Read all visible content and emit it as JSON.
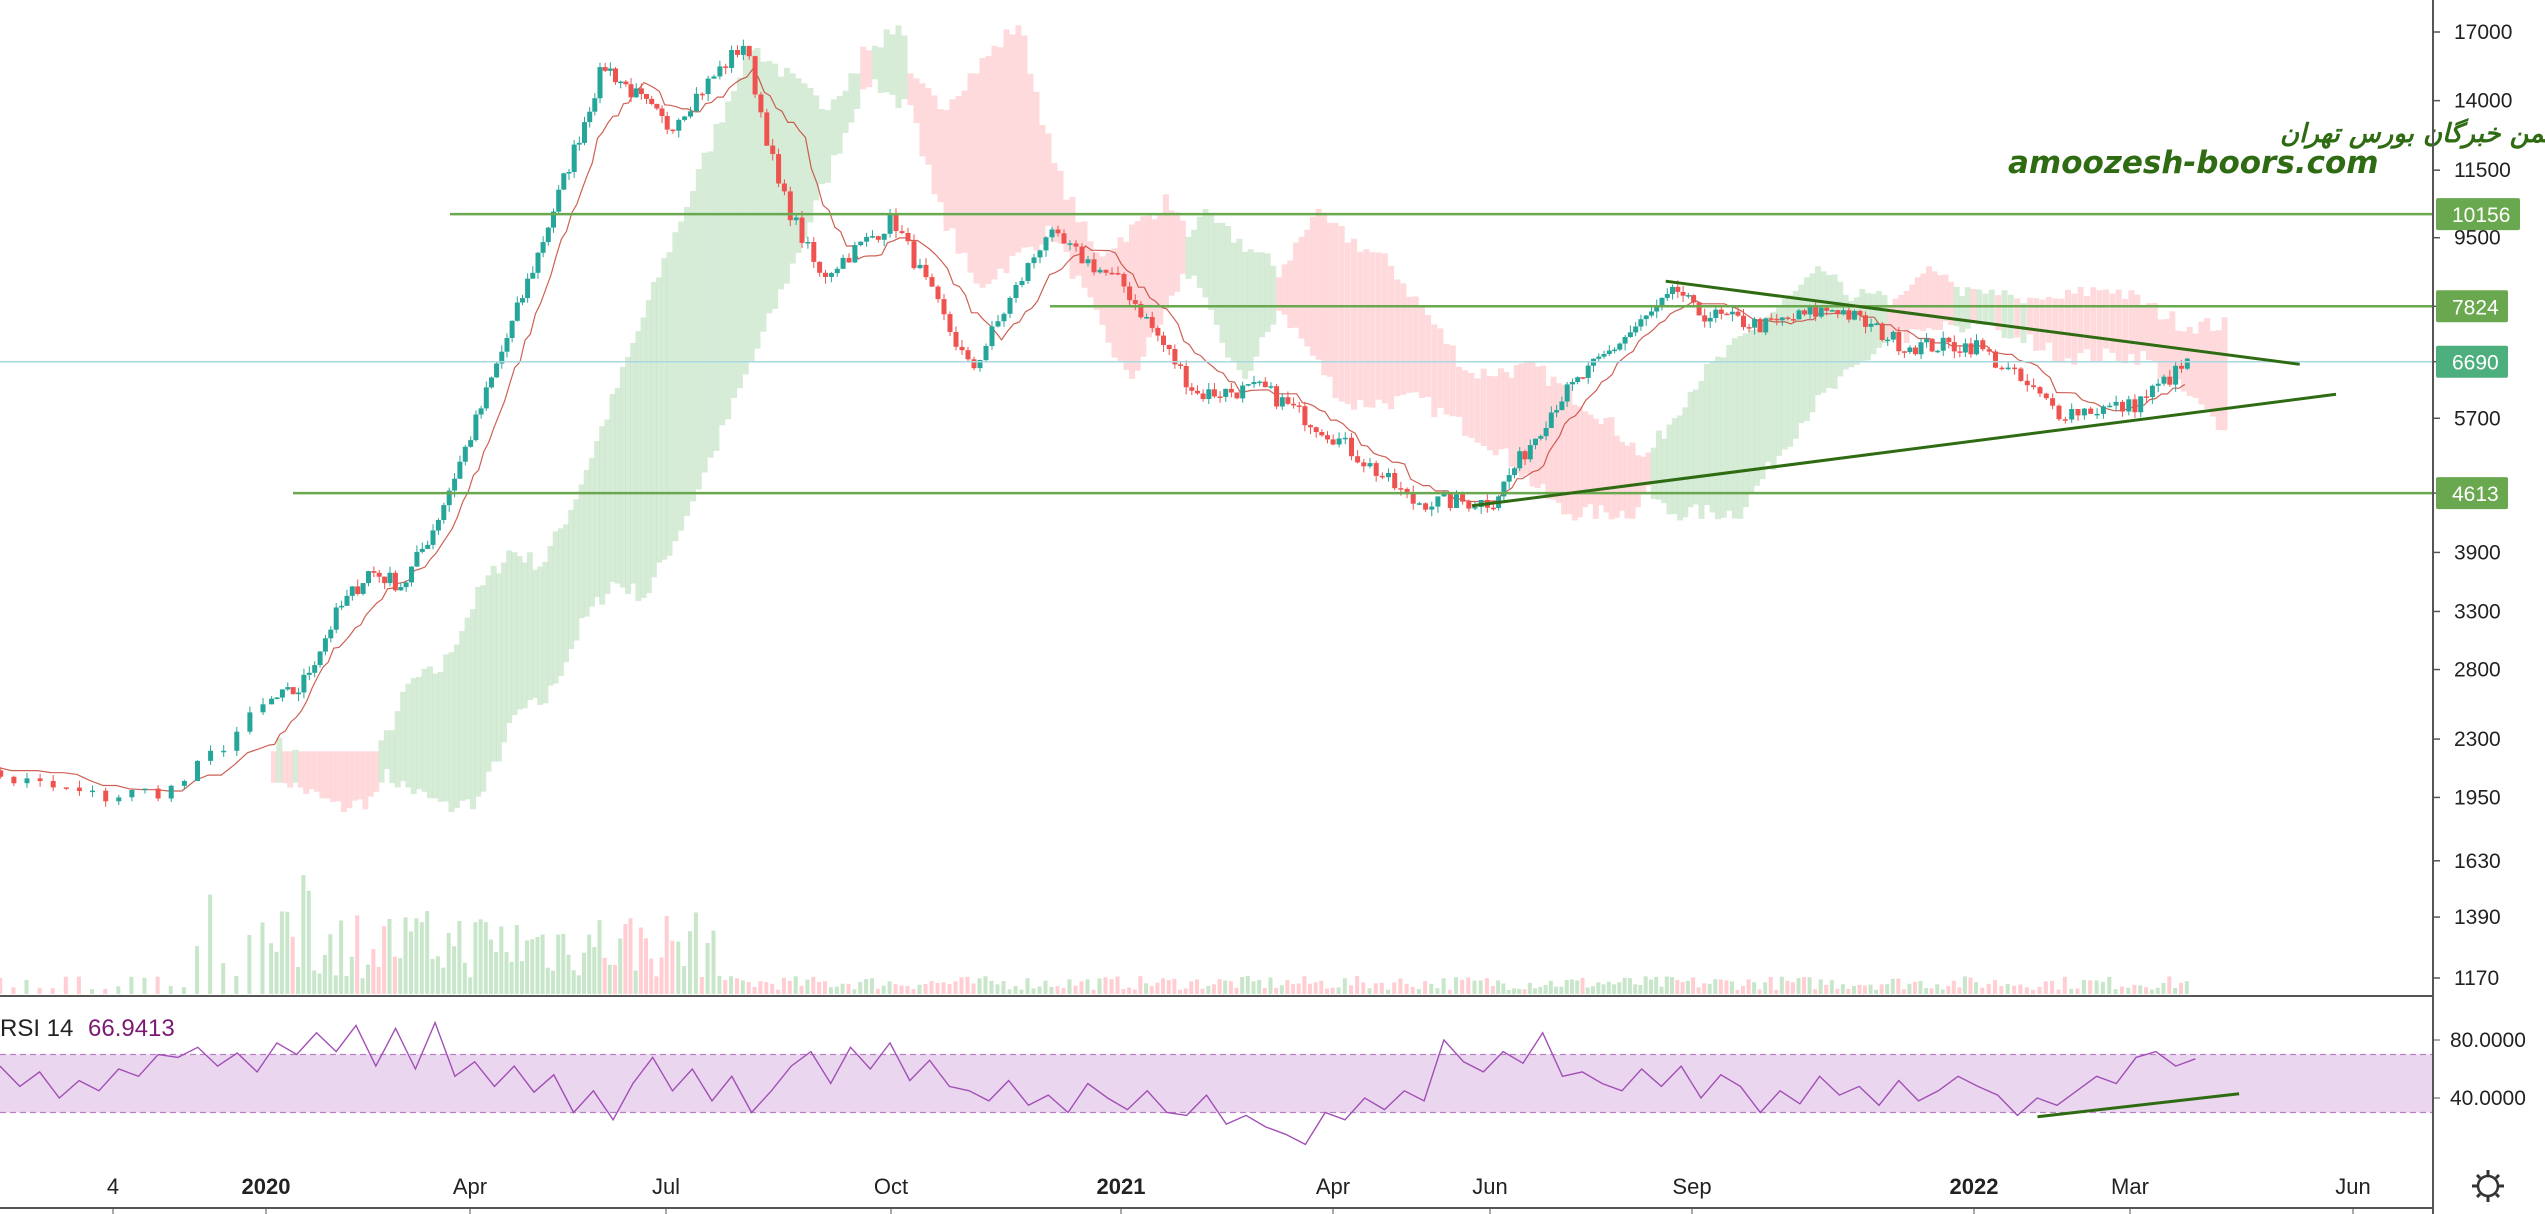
{
  "watermark": {
    "line1": "انجمن خبرگان  بورس تهران",
    "line2": "amoozesh-boors.com"
  },
  "colors": {
    "up": "#26a69a",
    "down": "#ef5350",
    "level_line": "#6aa84f",
    "trend_line": "#2e6b12",
    "kumo_bull": "#c8e6c9",
    "kumo_bear": "#ffcdd2",
    "base_line": "#c0392b",
    "rsi_line": "#a24fb5",
    "rsi_band": "#ead7ef"
  },
  "chart_data": [
    {
      "type": "candlestick",
      "name": "price",
      "y_scale": "log",
      "y_ticks": [
        17000,
        14000,
        11500,
        9500,
        7824,
        6690,
        5700,
        4613,
        3900,
        3300,
        2800,
        2300,
        1950,
        1630,
        1390,
        1170
      ],
      "y_tick_labels": [
        "17000",
        "14000",
        "11500",
        "9500",
        "",
        "",
        "5700",
        "",
        "3900",
        "3300",
        "2800",
        "2300",
        "1950",
        "1630",
        "1390",
        "1170"
      ],
      "x_tick_labels": [
        "4",
        "2020",
        "Apr",
        "Jul",
        "Oct",
        "2021",
        "Apr",
        "Jun",
        "Sep",
        "2022",
        "Mar",
        "Jun"
      ],
      "bold_x_ticks": [
        "2020",
        "2021",
        "2022"
      ],
      "horizontal_levels": [
        10156,
        7824,
        4613
      ],
      "current_price": 6690,
      "price_path": [
        {
          "x": "2019-11",
          "y": 2150
        },
        {
          "x": "2019-11-15",
          "y": 2050
        },
        {
          "x": "2019-12",
          "y": 1950
        },
        {
          "x": "2019-12-15",
          "y": 2000
        },
        {
          "x": "2020-01",
          "y": 2550
        },
        {
          "x": "2020-01-15",
          "y": 2650
        },
        {
          "x": "2020-02",
          "y": 3300
        },
        {
          "x": "2020-02-15",
          "y": 3700
        },
        {
          "x": "2020-03",
          "y": 3550
        },
        {
          "x": "2020-03-15",
          "y": 4200
        },
        {
          "x": "2020-04",
          "y": 5500
        },
        {
          "x": "2020-05",
          "y": 9000
        },
        {
          "x": "2020-06",
          "y": 15500
        },
        {
          "x": "2020-07",
          "y": 13000
        },
        {
          "x": "2020-08",
          "y": 16500
        },
        {
          "x": "2020-08-15",
          "y": 11000
        },
        {
          "x": "2020-09",
          "y": 8500
        },
        {
          "x": "2020-10",
          "y": 10000
        },
        {
          "x": "2020-11",
          "y": 6500
        },
        {
          "x": "2020-12",
          "y": 9600
        },
        {
          "x": "2021-01",
          "y": 8300
        },
        {
          "x": "2021-02",
          "y": 6100
        },
        {
          "x": "2021-03",
          "y": 6200
        },
        {
          "x": "2021-04",
          "y": 5400
        },
        {
          "x": "2021-05",
          "y": 4500
        },
        {
          "x": "2021-06",
          "y": 4500
        },
        {
          "x": "2021-07",
          "y": 6000
        },
        {
          "x": "2021-08",
          "y": 7200
        },
        {
          "x": "2021-08-25",
          "y": 8200
        },
        {
          "x": "2021-09",
          "y": 7700
        },
        {
          "x": "2021-10",
          "y": 7400
        },
        {
          "x": "2021-11",
          "y": 7800
        },
        {
          "x": "2021-12",
          "y": 7000
        },
        {
          "x": "2022-01",
          "y": 7000
        },
        {
          "x": "2022-02",
          "y": 5800
        },
        {
          "x": "2022-03",
          "y": 5900
        },
        {
          "x": "2022-03-25",
          "y": 6690
        }
      ],
      "trend_lines": [
        {
          "from": {
            "x": "2021-08-20",
            "y": 8400
          },
          "to": {
            "x": "2022-05-10",
            "y": 6640
          }
        },
        {
          "from": {
            "x": "2021-05-25",
            "y": 4450
          },
          "to": {
            "x": "2022-05-25",
            "y": 6100
          }
        }
      ]
    },
    {
      "type": "line",
      "name": "RSI 14",
      "current_value": "66.9413",
      "y_ticks": [
        "80.0000",
        "40.0000"
      ],
      "band": [
        30,
        70
      ],
      "values": [
        62,
        48,
        58,
        40,
        52,
        45,
        60,
        55,
        70,
        68,
        75,
        62,
        71,
        58,
        78,
        70,
        85,
        72,
        90,
        62,
        88,
        60,
        92,
        55,
        65,
        48,
        62,
        44,
        56,
        30,
        45,
        25,
        50,
        68,
        45,
        60,
        38,
        55,
        30,
        45,
        62,
        72,
        50,
        75,
        60,
        78,
        52,
        66,
        48,
        45,
        38,
        52,
        35,
        42,
        30,
        50,
        40,
        32,
        45,
        30,
        28,
        42,
        22,
        28,
        20,
        15,
        8,
        30,
        25,
        40,
        32,
        45,
        38,
        80,
        65,
        58,
        72,
        64,
        85,
        55,
        58,
        50,
        45,
        60,
        48,
        62,
        40,
        56,
        48,
        30,
        45,
        36,
        55,
        42,
        48,
        35,
        52,
        38,
        45,
        55,
        48,
        42,
        28,
        40,
        35,
        45,
        55,
        50,
        68,
        72,
        62,
        67
      ],
      "trend_line": {
        "from": {
          "x": "2022-01-25",
          "y": 27
        },
        "to": {
          "x": "2022-04-15",
          "y": 43
        }
      }
    }
  ]
}
